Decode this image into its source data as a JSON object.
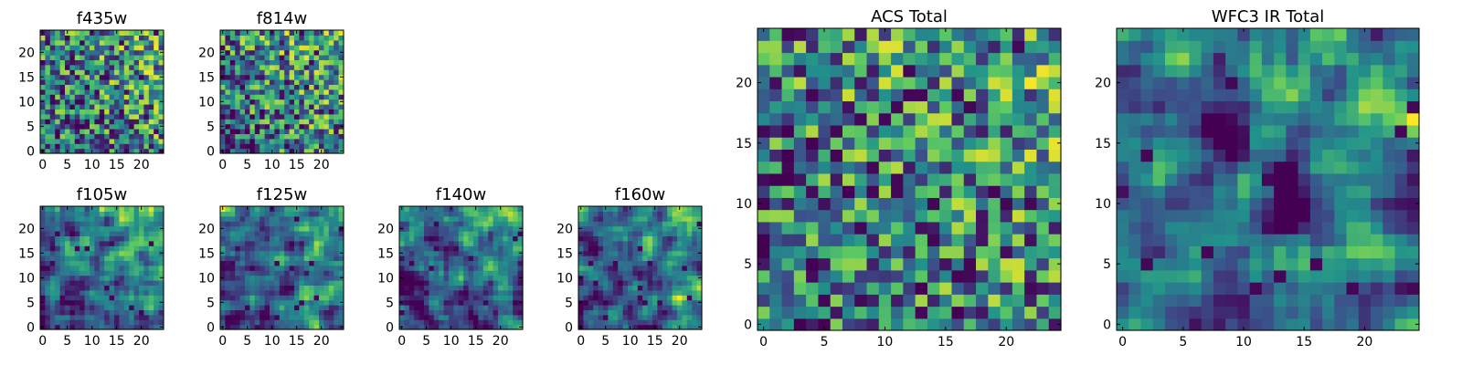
{
  "chart_data": [
    {
      "type": "heatmap",
      "title": "f435w",
      "xticks": [
        "0",
        "5",
        "10",
        "15",
        "20"
      ],
      "yticks": [
        "0",
        "5",
        "10",
        "15",
        "20"
      ],
      "grid_size": 25,
      "pixel_range": [
        -0.5,
        24.5
      ],
      "colormap": "viridis",
      "character": "noisy"
    },
    {
      "type": "heatmap",
      "title": "f814w",
      "xticks": [
        "0",
        "5",
        "10",
        "15",
        "20"
      ],
      "yticks": [
        "0",
        "5",
        "10",
        "15",
        "20"
      ],
      "grid_size": 25,
      "pixel_range": [
        -0.5,
        24.5
      ],
      "colormap": "viridis",
      "character": "noisy"
    },
    {
      "type": "heatmap",
      "title": "f105w",
      "xticks": [
        "0",
        "5",
        "10",
        "15",
        "20"
      ],
      "yticks": [
        "0",
        "5",
        "10",
        "15",
        "20"
      ],
      "grid_size": 25,
      "pixel_range": [
        -0.5,
        24.5
      ],
      "colormap": "viridis",
      "character": "smooth"
    },
    {
      "type": "heatmap",
      "title": "f125w",
      "xticks": [
        "0",
        "5",
        "10",
        "15",
        "20"
      ],
      "yticks": [
        "0",
        "5",
        "10",
        "15",
        "20"
      ],
      "grid_size": 25,
      "pixel_range": [
        -0.5,
        24.5
      ],
      "colormap": "viridis",
      "character": "smooth"
    },
    {
      "type": "heatmap",
      "title": "f140w",
      "xticks": [
        "0",
        "5",
        "10",
        "15",
        "20"
      ],
      "yticks": [
        "0",
        "5",
        "10",
        "15",
        "20"
      ],
      "grid_size": 25,
      "pixel_range": [
        -0.5,
        24.5
      ],
      "colormap": "viridis",
      "character": "smooth"
    },
    {
      "type": "heatmap",
      "title": "f160w",
      "xticks": [
        "0",
        "5",
        "10",
        "15",
        "20"
      ],
      "yticks": [
        "0",
        "5",
        "10",
        "15",
        "20"
      ],
      "grid_size": 25,
      "pixel_range": [
        -0.5,
        24.5
      ],
      "colormap": "viridis",
      "character": "smooth"
    },
    {
      "type": "heatmap",
      "title": "ACS Total",
      "xticks": [
        "0",
        "5",
        "10",
        "15",
        "20"
      ],
      "yticks": [
        "0",
        "5",
        "10",
        "15",
        "20"
      ],
      "grid_size": 25,
      "pixel_range": [
        -0.5,
        24.5
      ],
      "colormap": "viridis",
      "character": "noisy"
    },
    {
      "type": "heatmap",
      "title": "WFC3 IR Total",
      "xticks": [
        "0",
        "5",
        "10",
        "15",
        "20"
      ],
      "yticks": [
        "0",
        "5",
        "10",
        "15",
        "20"
      ],
      "grid_size": 25,
      "pixel_range": [
        -0.5,
        24.5
      ],
      "colormap": "viridis",
      "character": "smooth"
    }
  ],
  "colors": {
    "viridis": [
      "#440154",
      "#3b528b",
      "#21918c",
      "#5ec962",
      "#fde725"
    ],
    "axes_edge": "#000000"
  }
}
